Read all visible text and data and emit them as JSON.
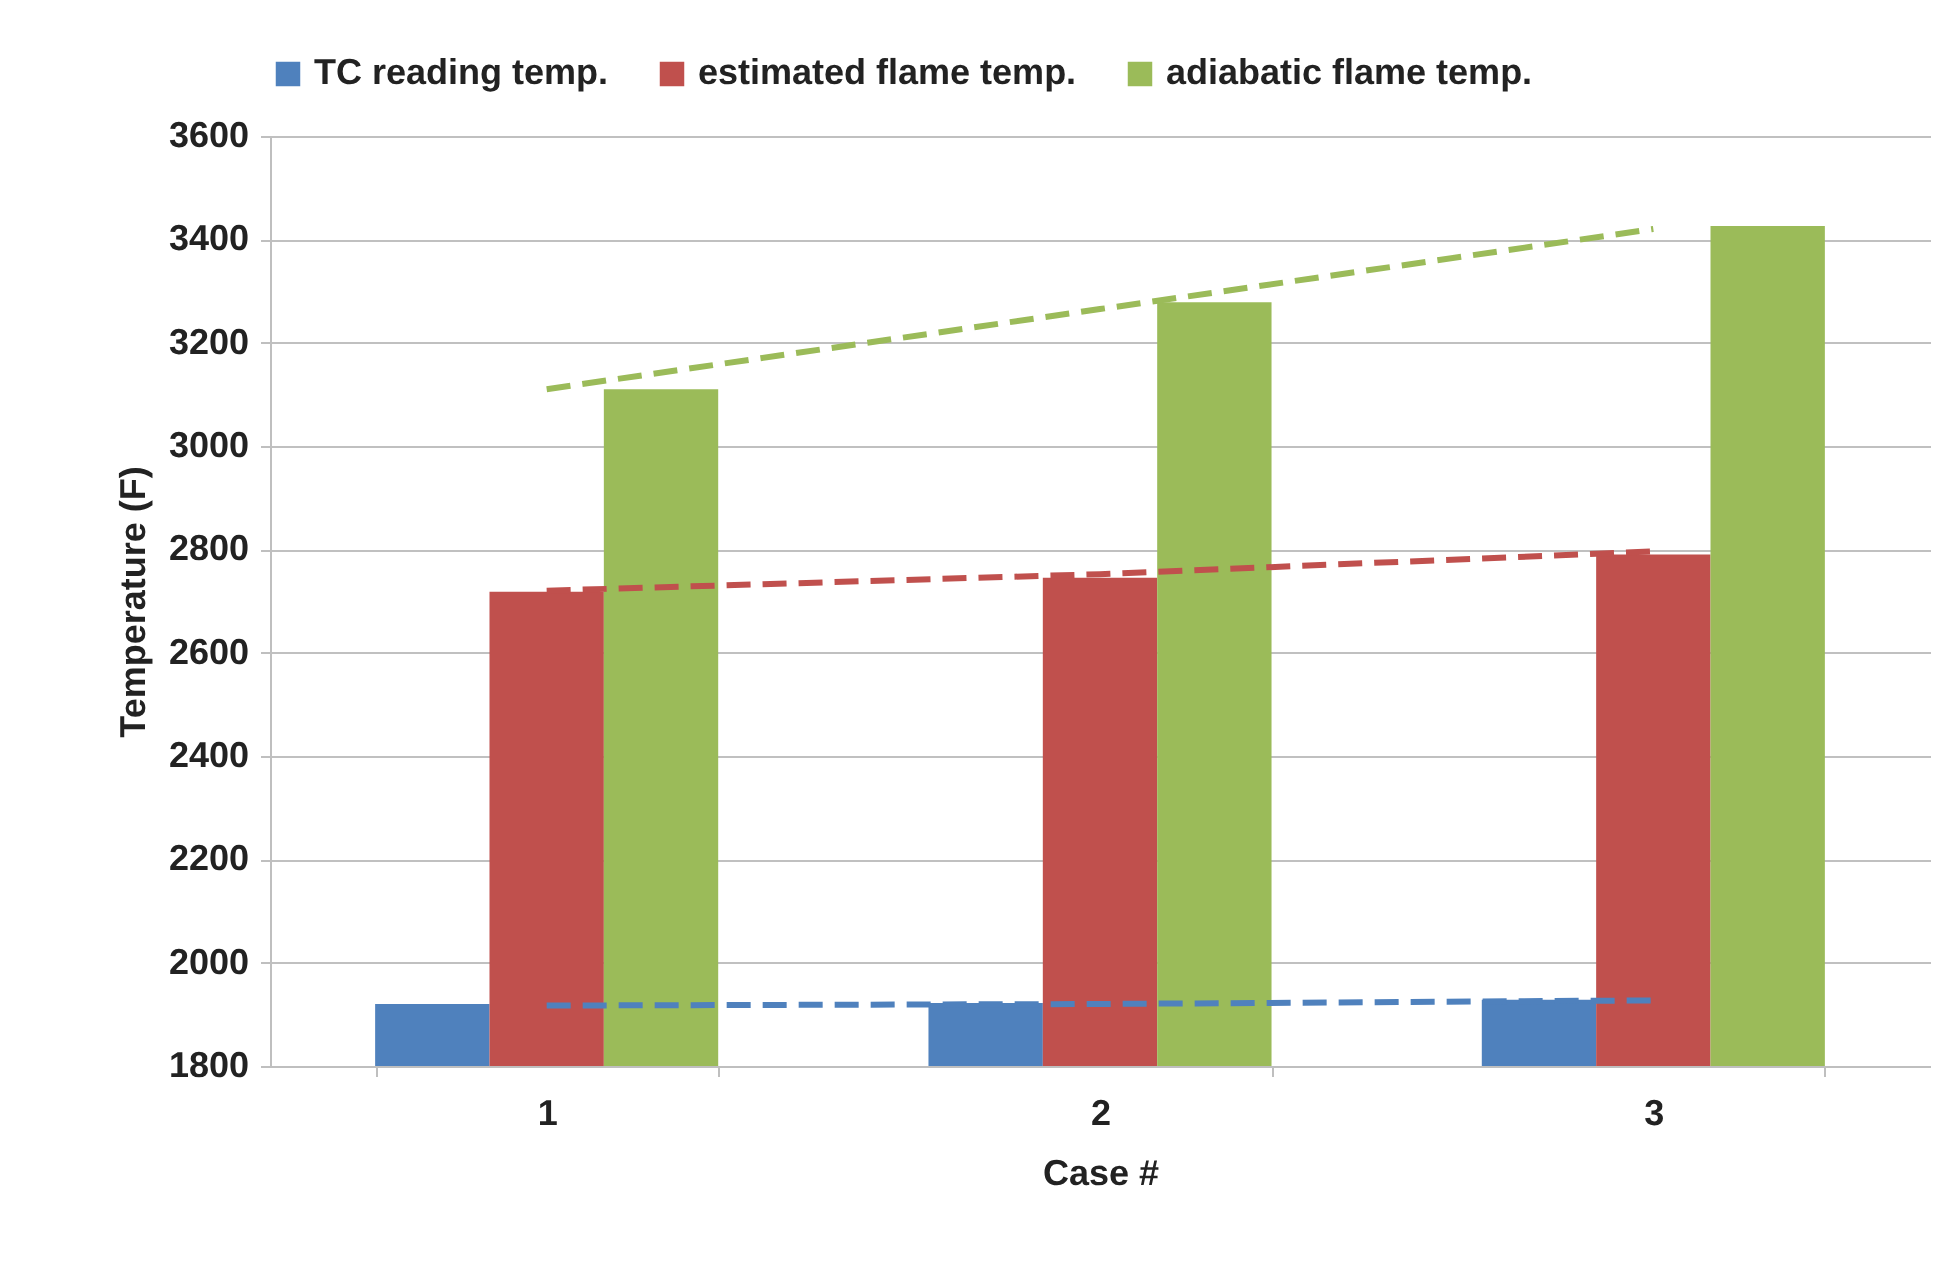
{
  "chart_data": {
    "type": "bar",
    "xlabel": "Case #",
    "ylabel": "Temperature (F)",
    "categories": [
      "1",
      "2",
      "3"
    ],
    "ylim": [
      1800,
      3600
    ],
    "yticks": [
      1800,
      2000,
      2200,
      2400,
      2600,
      2800,
      3000,
      3200,
      3400,
      3600
    ],
    "grid": "y",
    "legend": "top",
    "series": [
      {
        "name": "TC reading temp.",
        "color": "#4f81bd",
        "values": [
          1920,
          1922,
          1928
        ]
      },
      {
        "name": "estimated flame temp.",
        "color": "#c0504d",
        "values": [
          2718,
          2745,
          2790
        ]
      },
      {
        "name": "adiabatic flame temp.",
        "color": "#9bbb59",
        "values": [
          3110,
          3278,
          3426
        ]
      },
      {
        "type": "line",
        "color": "#4f81bd",
        "line_style": "dashed",
        "x": [
          "1",
          "2",
          "3"
        ],
        "values": [
          1917,
          1920,
          1927
        ]
      },
      {
        "type": "line",
        "color": "#c0504d",
        "line_style": "dashed",
        "x": [
          "1",
          "2",
          "3"
        ],
        "values": [
          2720,
          2752,
          2796
        ]
      },
      {
        "type": "line",
        "color": "#9bbb59",
        "line_style": "dashed",
        "x": [
          "1",
          "2",
          "3"
        ],
        "values": [
          3110,
          3265,
          3420
        ]
      }
    ]
  }
}
